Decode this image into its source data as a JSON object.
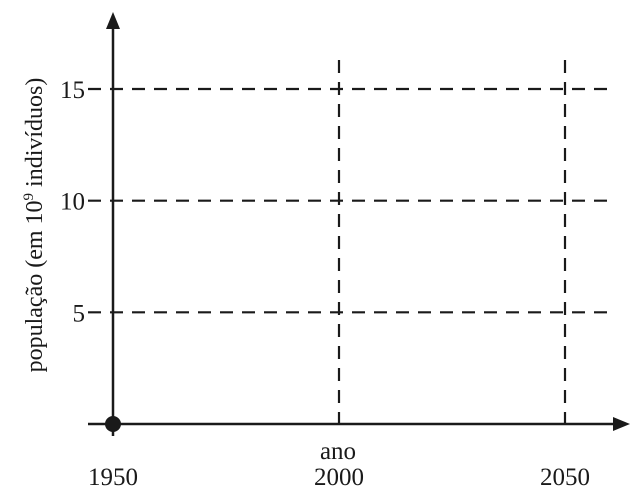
{
  "chart_data": {
    "type": "line",
    "title": "",
    "xlabel": "ano",
    "ylabel": {
      "prefix": "população (em 10",
      "exponent": "9",
      "suffix": " indivíduos)"
    },
    "x_ticks": [
      {
        "value": 1950,
        "label": "1950"
      },
      {
        "value": 2000,
        "label": "2000"
      },
      {
        "value": 2050,
        "label": "2050"
      }
    ],
    "y_ticks": [
      {
        "value": 5,
        "label": "5"
      },
      {
        "value": 10,
        "label": "10"
      },
      {
        "value": 15,
        "label": "15"
      }
    ],
    "xlim": [
      1950,
      2050
    ],
    "ylim": [
      0,
      15
    ],
    "grid": true,
    "grid_style": "dashed",
    "series": [
      {
        "points": [
          {
            "x": 1950,
            "y": 0
          }
        ]
      }
    ]
  },
  "colors": {
    "axis": "#1a1a1a",
    "grid": "#1a1a1a",
    "text": "#1a1a1a",
    "point": "#1a1a1a"
  }
}
